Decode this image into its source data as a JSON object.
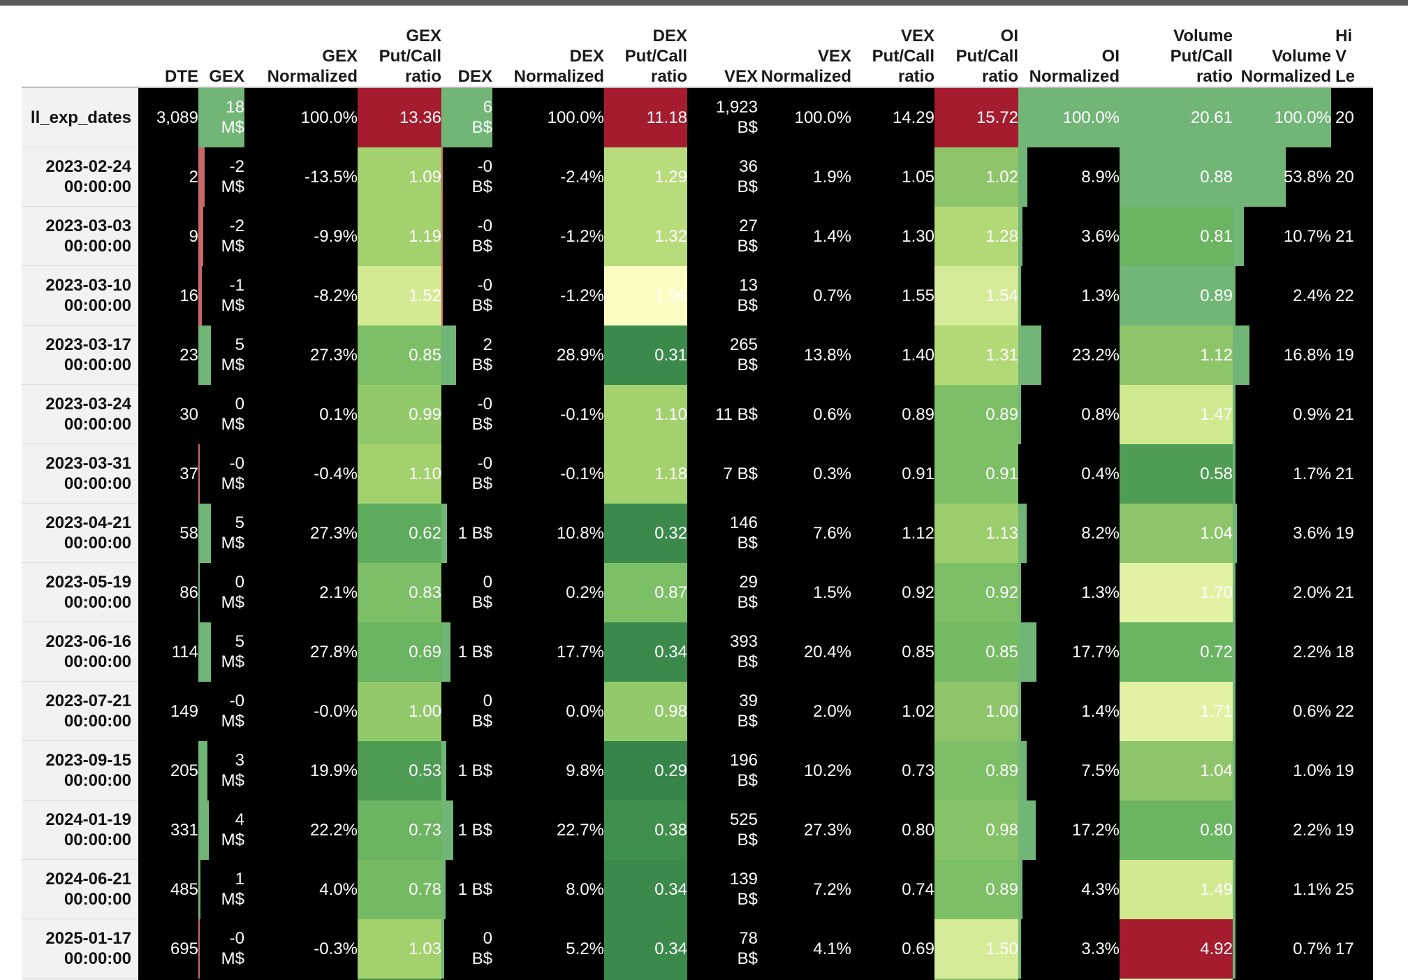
{
  "table": {
    "columns": [
      "DTE",
      "GEX",
      "GEX\nNormalized",
      "GEX\nPut/Call\nratio",
      "DEX",
      "DEX\nNormalized",
      "DEX\nPut/Call\nratio",
      "VEX",
      "VEX\nNormalized",
      "VEX\nPut/Call\nratio",
      "OI\nPut/Call\nratio",
      "OI\nNormalized",
      "Volume\nPut/Call\nratio",
      "Volume\nNormalized",
      "Hi\nV\nLe"
    ],
    "rows": [
      {
        "idx": "ll_exp_dates",
        "dte": "3,089",
        "gex": "18\nM$",
        "gex_norm": "100.0%",
        "gex_pc": "13.36",
        "dex": "6\nB$",
        "dex_norm": "100.0%",
        "dex_pc": "11.18",
        "vex": "1,923\nB$",
        "vex_norm": "100.0%",
        "vex_pc": "14.29",
        "oi_pc": "15.72",
        "oi_norm": "100.0%",
        "vol_pc": "20.61",
        "vol_norm": "100.0%",
        "hi": "20"
      },
      {
        "idx": "2023-02-24\n00:00:00",
        "dte": "2",
        "gex": "-2\nM$",
        "gex_norm": "-13.5%",
        "gex_pc": "1.09",
        "dex": "-0\nB$",
        "dex_norm": "-2.4%",
        "dex_pc": "1.29",
        "vex": "36\nB$",
        "vex_norm": "1.9%",
        "vex_pc": "1.05",
        "oi_pc": "1.02",
        "oi_norm": "8.9%",
        "vol_pc": "0.88",
        "vol_norm": "53.8%",
        "hi": "20"
      },
      {
        "idx": "2023-03-03\n00:00:00",
        "dte": "9",
        "gex": "-2\nM$",
        "gex_norm": "-9.9%",
        "gex_pc": "1.19",
        "dex": "-0\nB$",
        "dex_norm": "-1.2%",
        "dex_pc": "1.32",
        "vex": "27\nB$",
        "vex_norm": "1.4%",
        "vex_pc": "1.30",
        "oi_pc": "1.28",
        "oi_norm": "3.6%",
        "vol_pc": "0.81",
        "vol_norm": "10.7%",
        "hi": "21"
      },
      {
        "idx": "2023-03-10\n00:00:00",
        "dte": "16",
        "gex": "-1\nM$",
        "gex_norm": "-8.2%",
        "gex_pc": "1.52",
        "dex": "-0\nB$",
        "dex_norm": "-1.2%",
        "dex_pc": "1.96",
        "vex": "13\nB$",
        "vex_norm": "0.7%",
        "vex_pc": "1.55",
        "oi_pc": "1.54",
        "oi_norm": "1.3%",
        "vol_pc": "0.89",
        "vol_norm": "2.4%",
        "hi": "22"
      },
      {
        "idx": "2023-03-17\n00:00:00",
        "dte": "23",
        "gex": "5\nM$",
        "gex_norm": "27.3%",
        "gex_pc": "0.85",
        "dex": "2\nB$",
        "dex_norm": "28.9%",
        "dex_pc": "0.31",
        "vex": "265\nB$",
        "vex_norm": "13.8%",
        "vex_pc": "1.40",
        "oi_pc": "1.31",
        "oi_norm": "23.2%",
        "vol_pc": "1.12",
        "vol_norm": "16.8%",
        "hi": "19"
      },
      {
        "idx": "2023-03-24\n00:00:00",
        "dte": "30",
        "gex": "0\nM$",
        "gex_norm": "0.1%",
        "gex_pc": "0.99",
        "dex": "-0\nB$",
        "dex_norm": "-0.1%",
        "dex_pc": "1.10",
        "vex": "11 B$",
        "vex_norm": "0.6%",
        "vex_pc": "0.89",
        "oi_pc": "0.89",
        "oi_norm": "0.8%",
        "vol_pc": "1.47",
        "vol_norm": "0.9%",
        "hi": "21"
      },
      {
        "idx": "2023-03-31\n00:00:00",
        "dte": "37",
        "gex": "-0\nM$",
        "gex_norm": "-0.4%",
        "gex_pc": "1.10",
        "dex": "-0\nB$",
        "dex_norm": "-0.1%",
        "dex_pc": "1.18",
        "vex": "7 B$",
        "vex_norm": "0.3%",
        "vex_pc": "0.91",
        "oi_pc": "0.91",
        "oi_norm": "0.4%",
        "vol_pc": "0.58",
        "vol_norm": "1.7%",
        "hi": "21"
      },
      {
        "idx": "2023-04-21\n00:00:00",
        "dte": "58",
        "gex": "5\nM$",
        "gex_norm": "27.3%",
        "gex_pc": "0.62",
        "dex": "1 B$",
        "dex_norm": "10.8%",
        "dex_pc": "0.32",
        "vex": "146\nB$",
        "vex_norm": "7.6%",
        "vex_pc": "1.12",
        "oi_pc": "1.13",
        "oi_norm": "8.2%",
        "vol_pc": "1.04",
        "vol_norm": "3.6%",
        "hi": "19"
      },
      {
        "idx": "2023-05-19\n00:00:00",
        "dte": "86",
        "gex": "0\nM$",
        "gex_norm": "2.1%",
        "gex_pc": "0.83",
        "dex": "0\nB$",
        "dex_norm": "0.2%",
        "dex_pc": "0.87",
        "vex": "29\nB$",
        "vex_norm": "1.5%",
        "vex_pc": "0.92",
        "oi_pc": "0.92",
        "oi_norm": "1.3%",
        "vol_pc": "1.70",
        "vol_norm": "2.0%",
        "hi": "21"
      },
      {
        "idx": "2023-06-16\n00:00:00",
        "dte": "114",
        "gex": "5\nM$",
        "gex_norm": "27.8%",
        "gex_pc": "0.69",
        "dex": "1 B$",
        "dex_norm": "17.7%",
        "dex_pc": "0.34",
        "vex": "393\nB$",
        "vex_norm": "20.4%",
        "vex_pc": "0.85",
        "oi_pc": "0.85",
        "oi_norm": "17.7%",
        "vol_pc": "0.72",
        "vol_norm": "2.2%",
        "hi": "18"
      },
      {
        "idx": "2023-07-21\n00:00:00",
        "dte": "149",
        "gex": "-0\nM$",
        "gex_norm": "-0.0%",
        "gex_pc": "1.00",
        "dex": "0\nB$",
        "dex_norm": "0.0%",
        "dex_pc": "0.98",
        "vex": "39\nB$",
        "vex_norm": "2.0%",
        "vex_pc": "1.02",
        "oi_pc": "1.00",
        "oi_norm": "1.4%",
        "vol_pc": "1.71",
        "vol_norm": "0.6%",
        "hi": "22"
      },
      {
        "idx": "2023-09-15\n00:00:00",
        "dte": "205",
        "gex": "3\nM$",
        "gex_norm": "19.9%",
        "gex_pc": "0.53",
        "dex": "1 B$",
        "dex_norm": "9.8%",
        "dex_pc": "0.29",
        "vex": "196\nB$",
        "vex_norm": "10.2%",
        "vex_pc": "0.73",
        "oi_pc": "0.89",
        "oi_norm": "7.5%",
        "vol_pc": "1.04",
        "vol_norm": "1.0%",
        "hi": "19"
      },
      {
        "idx": "2024-01-19\n00:00:00",
        "dte": "331",
        "gex": "4\nM$",
        "gex_norm": "22.2%",
        "gex_pc": "0.73",
        "dex": "1 B$",
        "dex_norm": "22.7%",
        "dex_pc": "0.38",
        "vex": "525\nB$",
        "vex_norm": "27.3%",
        "vex_pc": "0.80",
        "oi_pc": "0.98",
        "oi_norm": "17.2%",
        "vol_pc": "0.80",
        "vol_norm": "2.2%",
        "hi": "19"
      },
      {
        "idx": "2024-06-21\n00:00:00",
        "dte": "485",
        "gex": "1\nM$",
        "gex_norm": "4.0%",
        "gex_pc": "0.78",
        "dex": "1 B$",
        "dex_norm": "8.0%",
        "dex_pc": "0.34",
        "vex": "139\nB$",
        "vex_norm": "7.2%",
        "vex_pc": "0.74",
        "oi_pc": "0.89",
        "oi_norm": "4.3%",
        "vol_pc": "1.49",
        "vol_norm": "1.1%",
        "hi": "25"
      },
      {
        "idx": "2025-01-17\n00:00:00",
        "dte": "695",
        "gex": "-0\nM$",
        "gex_norm": "-0.3%",
        "gex_pc": "1.03",
        "dex": "0\nB$",
        "dex_norm": "5.2%",
        "dex_pc": "0.34",
        "vex": "78\nB$",
        "vex_norm": "4.1%",
        "vex_pc": "0.69",
        "oi_pc": "1.50",
        "oi_norm": "3.3%",
        "vol_pc": "4.92",
        "vol_norm": "0.7%",
        "hi": "17"
      },
      {
        "idx": "",
        "dte": "",
        "gex": "",
        "gex_norm": "",
        "gex_pc": "",
        "dex": "",
        "dex_norm": "",
        "dex_pc": "",
        "vex": "",
        "vex_norm": "",
        "vex_pc": "",
        "oi_pc": "",
        "oi_norm": "",
        "vol_pc": "",
        "vol_norm": "",
        "hi": ""
      }
    ]
  },
  "bar_fractions": {
    "gex": [
      1.0,
      -0.13,
      -0.1,
      -0.08,
      0.27,
      0.0,
      -0.01,
      0.27,
      0.02,
      0.28,
      0.0,
      0.2,
      0.22,
      0.04,
      -0.01,
      0.0
    ],
    "dex": [
      1.0,
      -0.02,
      -0.01,
      -0.01,
      0.29,
      0.0,
      0.0,
      0.11,
      0.0,
      0.18,
      0.0,
      0.1,
      0.23,
      0.08,
      0.05,
      0.0
    ],
    "oi_norm": [
      1.0,
      0.09,
      0.04,
      0.01,
      0.23,
      0.01,
      0.0,
      0.08,
      0.01,
      0.18,
      0.01,
      0.08,
      0.17,
      0.04,
      0.03,
      0.0
    ],
    "vol_norm": [
      1.0,
      0.54,
      0.11,
      0.02,
      0.17,
      0.01,
      0.02,
      0.04,
      0.02,
      0.02,
      0.01,
      0.01,
      0.02,
      0.01,
      0.01,
      0.0
    ]
  },
  "heat_colors": {
    "gex_pc": [
      "#a51c2f",
      "#a2d16e",
      "#a2d16e",
      "#d4ea93",
      "#7dbf67",
      "#92ca6b",
      "#a2d16e",
      "#5fab5d",
      "#7dbf67",
      "#6bb461",
      "#92ca6b",
      "#4f9d55",
      "#6bb461",
      "#76bb64",
      "#a2d16e",
      "#3f8f4d"
    ],
    "dex_pc": [
      "#a51c2f",
      "#b8dc7c",
      "#b8dc7c",
      "#fcfdc3",
      "#3b8a4b",
      "#a2d16e",
      "#a2d16e",
      "#3b8a4b",
      "#7dbf67",
      "#3b8a4b",
      "#92ca6b",
      "#37854a",
      "#3f8f4d",
      "#3b8a4b",
      "#3b8a4b",
      "#3b8a4b"
    ],
    "oi_pc": [
      "#a51c2f",
      "#8ec56a",
      "#b3d977",
      "#d6eb97",
      "#b3d977",
      "#7dbf67",
      "#7dbf67",
      "#9ccd6d",
      "#7dbf67",
      "#76bb64",
      "#8ec56a",
      "#7dbf67",
      "#86c268",
      "#7dbf67",
      "#d6eb97",
      "#86c268"
    ],
    "vol_pc": [
      "#71b577",
      "#71b577",
      "#6bb461",
      "#71b577",
      "#8ec56a",
      "#d1e98f",
      "#4f9d55",
      "#8ec56a",
      "#e2f1a3",
      "#6bb461",
      "#e2f1a3",
      "#8ec56a",
      "#6bb461",
      "#d1e98f",
      "#a51c2f",
      "#e2f1a3"
    ]
  },
  "colors": {
    "neg_bar": "#c96a6a",
    "pos_bar": "#71b577",
    "cell_bg": "#000000",
    "index_bg": "#f2f2f2"
  }
}
